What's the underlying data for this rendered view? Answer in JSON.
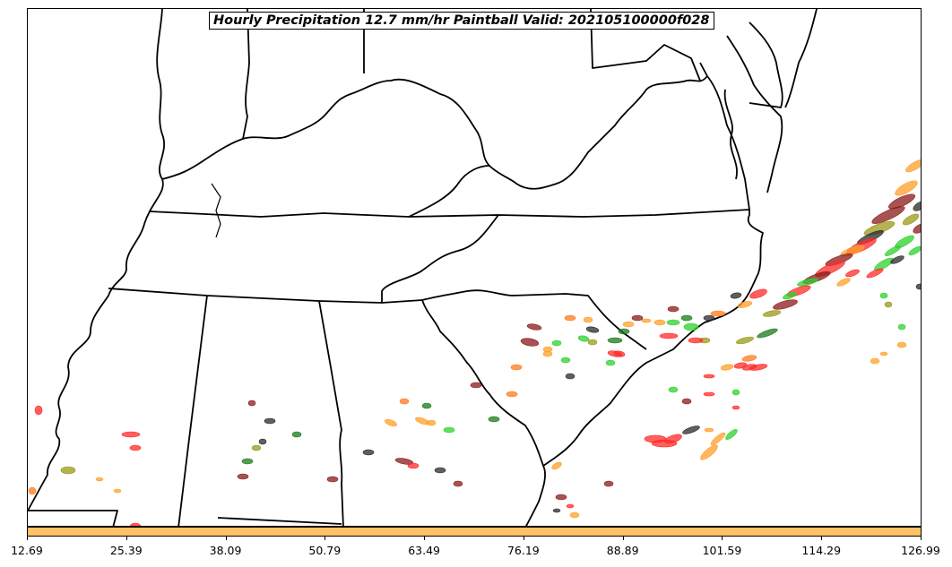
{
  "title": "Hourly Precipitation 12.7 mm/hr Paintball Valid: 202105100000f028",
  "colorbar": {
    "color": "#ffc266",
    "ticks": [
      "12.69",
      "25.39",
      "38.09",
      "50.79",
      "63.49",
      "76.19",
      "88.89",
      "101.59",
      "114.29",
      "126.99"
    ]
  },
  "member_colors": [
    "#ff2a2a",
    "#ff9f2a",
    "#8b1a1a",
    "#2a2a2a",
    "#2ed12e",
    "#9a9a1a",
    "#1a7a1a",
    "#ff7a1a"
  ],
  "map_colors": {
    "boundary": "#000000",
    "background": "#ffffff"
  }
}
